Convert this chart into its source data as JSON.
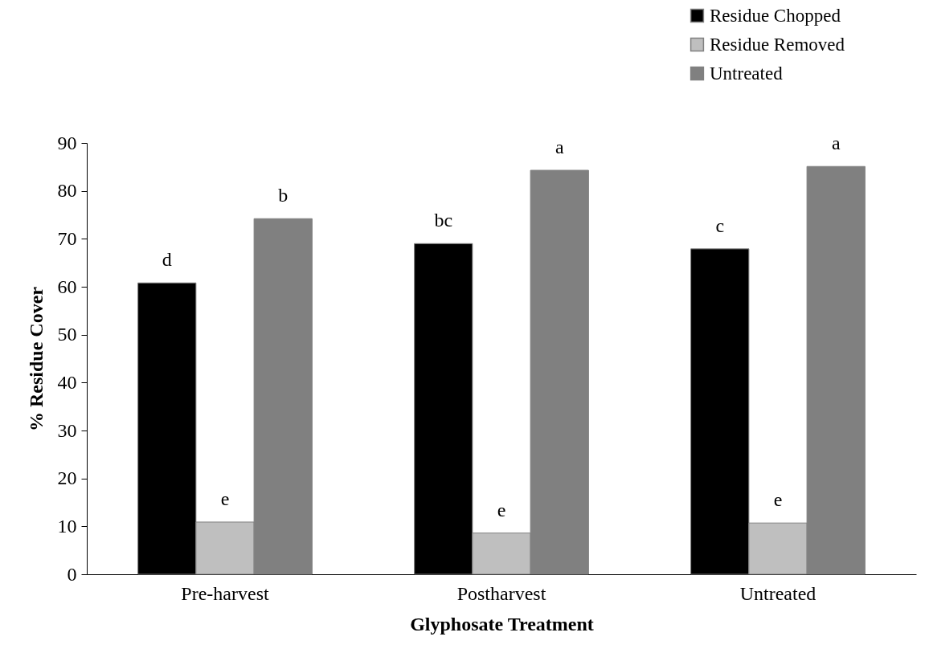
{
  "chart_data": {
    "type": "bar",
    "xlabel": "Glyphosate Treatment",
    "ylabel": "% Residue Cover",
    "categories": [
      "Pre-harvest",
      "Postharvest",
      "Untreated"
    ],
    "series": [
      {
        "name": "Residue Chopped",
        "color": "#000000",
        "values": [
          60.8,
          69,
          67.9
        ],
        "value_labels": [
          "d",
          "bc",
          "c"
        ]
      },
      {
        "name": "Residue Removed",
        "color": "#bfbfbf",
        "values": [
          10.9,
          8.6,
          10.7
        ],
        "value_labels": [
          "e",
          "e",
          "e"
        ]
      },
      {
        "name": "Untreated",
        "color": "#808080",
        "values": [
          74.2,
          84.3,
          85.1
        ],
        "value_labels": [
          "b",
          "a",
          "a"
        ]
      }
    ],
    "ylim": [
      0,
      90
    ],
    "yticks": [
      0,
      10,
      20,
      30,
      40,
      50,
      60,
      70,
      80,
      90
    ],
    "grid": false,
    "legend": "top right"
  }
}
